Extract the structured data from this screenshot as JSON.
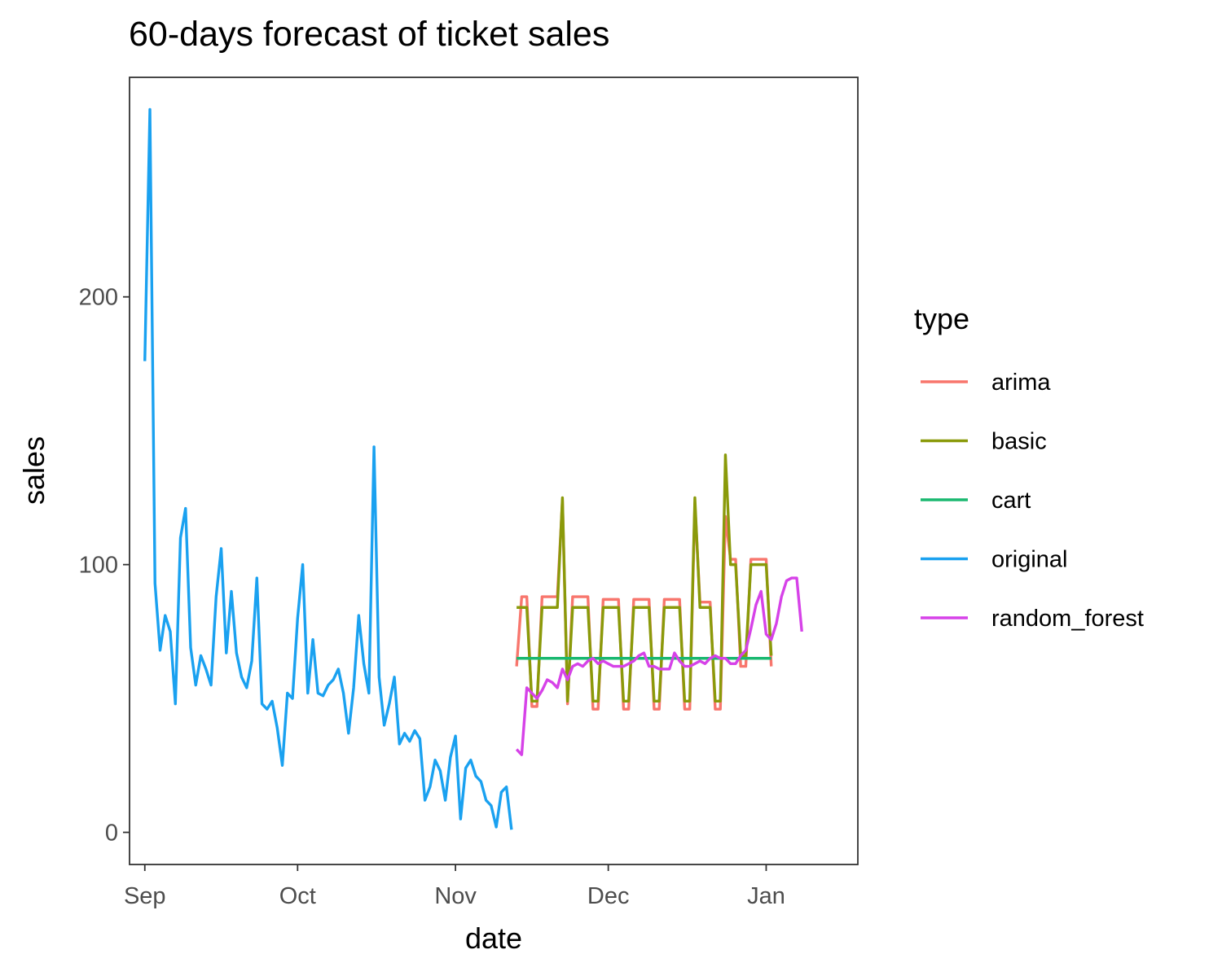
{
  "chart_data": {
    "type": "line",
    "title": "60-days forecast of ticket sales",
    "xlabel": "date",
    "ylabel": "sales",
    "x_axis_type": "date",
    "xlim": [
      "2020-08-29",
      "2021-01-19"
    ],
    "ylim": [
      -12,
      282
    ],
    "x_ticks": [
      {
        "label": "Sep",
        "date": "2020-09-01"
      },
      {
        "label": "Oct",
        "date": "2020-10-01"
      },
      {
        "label": "Nov",
        "date": "2020-11-01"
      },
      {
        "label": "Dec",
        "date": "2020-12-01"
      },
      {
        "label": "Jan",
        "date": "2021-01-01"
      }
    ],
    "y_ticks": [
      0,
      100,
      200
    ],
    "grid": false,
    "legend": {
      "title": "type",
      "position": "right"
    },
    "series": [
      {
        "name": "original",
        "color": "#1AA1F0",
        "start_date": "2020-09-01",
        "values": [
          176,
          270,
          93,
          68,
          81,
          75,
          48,
          110,
          121,
          69,
          55,
          66,
          61,
          55,
          88,
          106,
          67,
          90,
          67,
          58,
          54,
          64,
          95,
          48,
          46,
          49,
          39,
          25,
          52,
          50,
          80,
          100,
          52,
          72,
          52,
          51,
          55,
          57,
          61,
          52,
          37,
          54,
          81,
          63,
          52,
          144,
          58,
          40,
          48,
          58,
          33,
          37,
          34,
          38,
          35,
          12,
          17,
          27,
          23,
          12,
          28,
          36,
          5,
          24,
          27,
          21,
          19,
          12,
          10,
          2,
          15,
          17,
          1
        ]
      },
      {
        "name": "arima",
        "color": "#F8766D",
        "start_date": "2020-11-13",
        "values": [
          62,
          88,
          88,
          47,
          47,
          88,
          88,
          88,
          88,
          124,
          48,
          88,
          88,
          88,
          88,
          46,
          46,
          87,
          87,
          87,
          87,
          46,
          46,
          87,
          87,
          87,
          87,
          46,
          46,
          87,
          87,
          87,
          87,
          46,
          46,
          123,
          86,
          86,
          86,
          46,
          46,
          118,
          102,
          102,
          62,
          62,
          102,
          102,
          102,
          102,
          62
        ]
      },
      {
        "name": "basic",
        "color": "#8A9A0A",
        "start_date": "2020-11-13",
        "values": [
          84,
          84,
          84,
          49,
          49,
          84,
          84,
          84,
          84,
          125,
          49,
          84,
          84,
          84,
          84,
          49,
          49,
          84,
          84,
          84,
          84,
          49,
          49,
          84,
          84,
          84,
          84,
          49,
          49,
          84,
          84,
          84,
          84,
          49,
          49,
          125,
          84,
          84,
          84,
          49,
          49,
          141,
          100,
          100,
          66,
          66,
          100,
          100,
          100,
          100,
          66
        ]
      },
      {
        "name": "cart",
        "color": "#1AB870",
        "start_date": "2020-11-13",
        "values": [
          65,
          65,
          65,
          65,
          65,
          65,
          65,
          65,
          65,
          65,
          65,
          65,
          65,
          65,
          65,
          65,
          65,
          65,
          65,
          65,
          65,
          65,
          65,
          65,
          65,
          65,
          65,
          65,
          65,
          65,
          65,
          65,
          65,
          65,
          65,
          65,
          65,
          65,
          65,
          65,
          65,
          65,
          65,
          65,
          65,
          65,
          65,
          65,
          65,
          65,
          65
        ]
      },
      {
        "name": "random_forest",
        "color": "#D642E8",
        "start_date": "2020-11-13",
        "values": [
          31,
          29,
          54,
          52,
          50,
          53,
          57,
          56,
          54,
          61,
          57,
          62,
          63,
          62,
          64,
          65,
          63,
          64,
          63,
          62,
          62,
          62,
          63,
          64,
          66,
          67,
          62,
          62,
          61,
          61,
          61,
          67,
          64,
          62,
          62,
          63,
          64,
          63,
          65,
          66,
          65,
          65,
          63,
          63,
          66,
          68,
          76,
          85,
          90,
          74,
          72,
          78,
          88,
          94,
          95,
          95,
          75
        ]
      }
    ]
  }
}
